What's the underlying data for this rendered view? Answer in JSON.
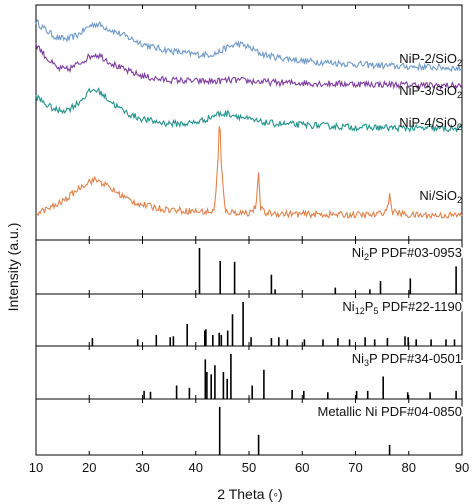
{
  "chart_data": {
    "type": "line",
    "xlabel": "2 Theta (◦)",
    "ylabel": "Intensity (a.u.)",
    "xlim": [
      10,
      90
    ],
    "xticks": [
      10,
      20,
      30,
      40,
      50,
      60,
      70,
      80,
      90
    ],
    "xtick_labels": [
      "10",
      "20",
      "30",
      "40",
      "50",
      "60",
      "70",
      "80",
      "90"
    ],
    "grid": false,
    "panels": [
      {
        "name": "xrd-patterns",
        "ylim": [
          0,
          10
        ],
        "series": [
          {
            "name": "NiP-2/SiO2",
            "label_main": "NiP-2/SiO",
            "label_sub": "2",
            "color": "#6f9ac9",
            "x": [
              10,
              12,
              14,
              16,
              18,
              20,
              21,
              22,
              24,
              26,
              28,
              30,
              32,
              34,
              36,
              38,
              40,
              42,
              44,
              46,
              48,
              50,
              52,
              54,
              56,
              58,
              60,
              65,
              70,
              75,
              80,
              85,
              90
            ],
            "y": [
              9.3,
              8.9,
              8.6,
              8.55,
              8.75,
              9.1,
              9.2,
              9.15,
              8.95,
              8.75,
              8.55,
              8.35,
              8.2,
              8.1,
              8.02,
              7.95,
              7.9,
              7.88,
              7.95,
              8.2,
              8.35,
              8.2,
              7.95,
              7.82,
              7.75,
              7.7,
              7.62,
              7.55,
              7.48,
              7.42,
              7.38,
              7.35,
              7.3
            ]
          },
          {
            "name": "NiP-3/SiO2",
            "label_main": "NiP-3/SiO",
            "label_sub": "2",
            "color": "#7e3ea0",
            "x": [
              10,
              12,
              14,
              16,
              18,
              20,
              21,
              22,
              24,
              26,
              28,
              30,
              32,
              34,
              36,
              38,
              40,
              42,
              44,
              46,
              48,
              50,
              55,
              60,
              65,
              70,
              75,
              80,
              85,
              90
            ],
            "y": [
              8.35,
              7.75,
              7.3,
              7.25,
              7.5,
              7.8,
              7.9,
              7.85,
              7.55,
              7.3,
              7.12,
              6.98,
              6.88,
              6.82,
              6.8,
              6.78,
              6.76,
              6.75,
              6.76,
              6.8,
              6.8,
              6.76,
              6.7,
              6.68,
              6.65,
              6.64,
              6.62,
              6.6,
              6.58,
              6.56
            ]
          },
          {
            "name": "NiP-4/SiO2",
            "label_main": "NiP-4/SiO",
            "label_sub": "2",
            "color": "#23938c",
            "x": [
              10,
              12,
              14,
              16,
              18,
              20,
              21,
              22,
              24,
              26,
              28,
              30,
              32,
              34,
              36,
              38,
              40,
              42,
              44,
              46,
              48,
              50,
              52,
              55,
              60,
              65,
              70,
              75,
              80,
              85,
              90
            ],
            "y": [
              6.1,
              5.75,
              5.5,
              5.55,
              5.85,
              6.3,
              6.4,
              6.3,
              5.9,
              5.55,
              5.3,
              5.15,
              5.05,
              4.98,
              4.95,
              4.95,
              5.0,
              5.15,
              5.35,
              5.38,
              5.28,
              5.12,
              5.02,
              4.95,
              4.9,
              4.85,
              4.8,
              4.78,
              4.76,
              4.74,
              4.72
            ]
          },
          {
            "name": "Ni/SiO2",
            "label_main": "Ni/SiO",
            "label_sub": "2",
            "color": "#e0824a",
            "x": [
              10,
              12,
              14,
              16,
              18,
              20,
              21,
              22,
              24,
              26,
              28,
              30,
              32,
              34,
              36,
              38,
              40,
              42,
              43.5,
              44.2,
              44.5,
              44.8,
              45.5,
              47,
              50,
              51.3,
              51.8,
              52.2,
              53,
              56,
              60,
              65,
              70,
              74,
              75.8,
              76.4,
              77,
              80,
              85,
              90
            ],
            "y": [
              1.15,
              1.3,
              1.5,
              1.8,
              2.2,
              2.5,
              2.55,
              2.5,
              2.2,
              1.9,
              1.65,
              1.5,
              1.4,
              1.32,
              1.28,
              1.25,
              1.22,
              1.2,
              1.22,
              3.5,
              5.4,
              3.2,
              1.22,
              1.18,
              1.15,
              1.4,
              2.75,
              1.35,
              1.15,
              1.12,
              1.1,
              1.08,
              1.07,
              1.07,
              1.25,
              1.85,
              1.2,
              1.06,
              1.05,
              1.05
            ]
          }
        ]
      },
      {
        "name": "ni2p-reference",
        "label_parts": [
          "Ni",
          "2",
          "P PDF#03-0953"
        ],
        "ylim": [
          0,
          100
        ],
        "peaks": [
          {
            "x": 40.7,
            "y": 100
          },
          {
            "x": 44.6,
            "y": 72
          },
          {
            "x": 47.3,
            "y": 70
          },
          {
            "x": 54.2,
            "y": 42
          },
          {
            "x": 54.9,
            "y": 10
          },
          {
            "x": 66.2,
            "y": 14
          },
          {
            "x": 72.7,
            "y": 10
          },
          {
            "x": 74.7,
            "y": 28
          },
          {
            "x": 80.3,
            "y": 34
          },
          {
            "x": 88.9,
            "y": 60
          }
        ]
      },
      {
        "name": "ni12p5-reference",
        "label_parts": [
          "Ni",
          "12",
          "P",
          "5",
          " PDF#22-1190"
        ],
        "ylim": [
          0,
          100
        ],
        "peaks": [
          {
            "x": 20.6,
            "y": 18
          },
          {
            "x": 29.1,
            "y": 15
          },
          {
            "x": 32.6,
            "y": 25
          },
          {
            "x": 35.2,
            "y": 20
          },
          {
            "x": 35.8,
            "y": 22
          },
          {
            "x": 38.4,
            "y": 50
          },
          {
            "x": 41.7,
            "y": 35
          },
          {
            "x": 41.9,
            "y": 38
          },
          {
            "x": 43.2,
            "y": 25
          },
          {
            "x": 44.4,
            "y": 30
          },
          {
            "x": 44.8,
            "y": 25
          },
          {
            "x": 46.0,
            "y": 35
          },
          {
            "x": 46.9,
            "y": 72
          },
          {
            "x": 48.9,
            "y": 100
          },
          {
            "x": 50.4,
            "y": 20
          },
          {
            "x": 54.2,
            "y": 18
          },
          {
            "x": 55.6,
            "y": 20
          },
          {
            "x": 57.2,
            "y": 15
          },
          {
            "x": 60.4,
            "y": 15
          },
          {
            "x": 63.9,
            "y": 15
          },
          {
            "x": 66.7,
            "y": 18
          },
          {
            "x": 68.9,
            "y": 15
          },
          {
            "x": 71.8,
            "y": 20
          },
          {
            "x": 73.6,
            "y": 15
          },
          {
            "x": 76.0,
            "y": 18
          },
          {
            "x": 79.3,
            "y": 22
          },
          {
            "x": 79.9,
            "y": 20
          },
          {
            "x": 81.4,
            "y": 15
          },
          {
            "x": 84.2,
            "y": 15
          },
          {
            "x": 87.0,
            "y": 15
          },
          {
            "x": 88.6,
            "y": 15
          }
        ]
      },
      {
        "name": "ni3p-reference",
        "label_parts": [
          "Ni",
          "3",
          "P PDF#34-0501"
        ],
        "ylim": [
          0,
          100
        ],
        "peaks": [
          {
            "x": 30.3,
            "y": 18
          },
          {
            "x": 31.5,
            "y": 16
          },
          {
            "x": 36.4,
            "y": 30
          },
          {
            "x": 38.8,
            "y": 25
          },
          {
            "x": 41.8,
            "y": 88
          },
          {
            "x": 42.1,
            "y": 60
          },
          {
            "x": 42.9,
            "y": 55
          },
          {
            "x": 43.6,
            "y": 75
          },
          {
            "x": 45.2,
            "y": 60
          },
          {
            "x": 45.9,
            "y": 45
          },
          {
            "x": 46.6,
            "y": 100
          },
          {
            "x": 50.6,
            "y": 30
          },
          {
            "x": 52.8,
            "y": 65
          },
          {
            "x": 58.1,
            "y": 20
          },
          {
            "x": 60.3,
            "y": 18
          },
          {
            "x": 64.8,
            "y": 15
          },
          {
            "x": 70.2,
            "y": 18
          },
          {
            "x": 72.3,
            "y": 18
          },
          {
            "x": 75.2,
            "y": 50
          },
          {
            "x": 79.8,
            "y": 15
          },
          {
            "x": 84.0,
            "y": 15
          },
          {
            "x": 88.9,
            "y": 18
          }
        ]
      },
      {
        "name": "metallic-ni-reference",
        "label_parts": [
          "Metallic Ni PDF#04-0850"
        ],
        "ylim": [
          0,
          100
        ],
        "peaks": [
          {
            "x": 44.5,
            "y": 100
          },
          {
            "x": 51.8,
            "y": 42
          },
          {
            "x": 76.4,
            "y": 21
          }
        ]
      }
    ]
  }
}
